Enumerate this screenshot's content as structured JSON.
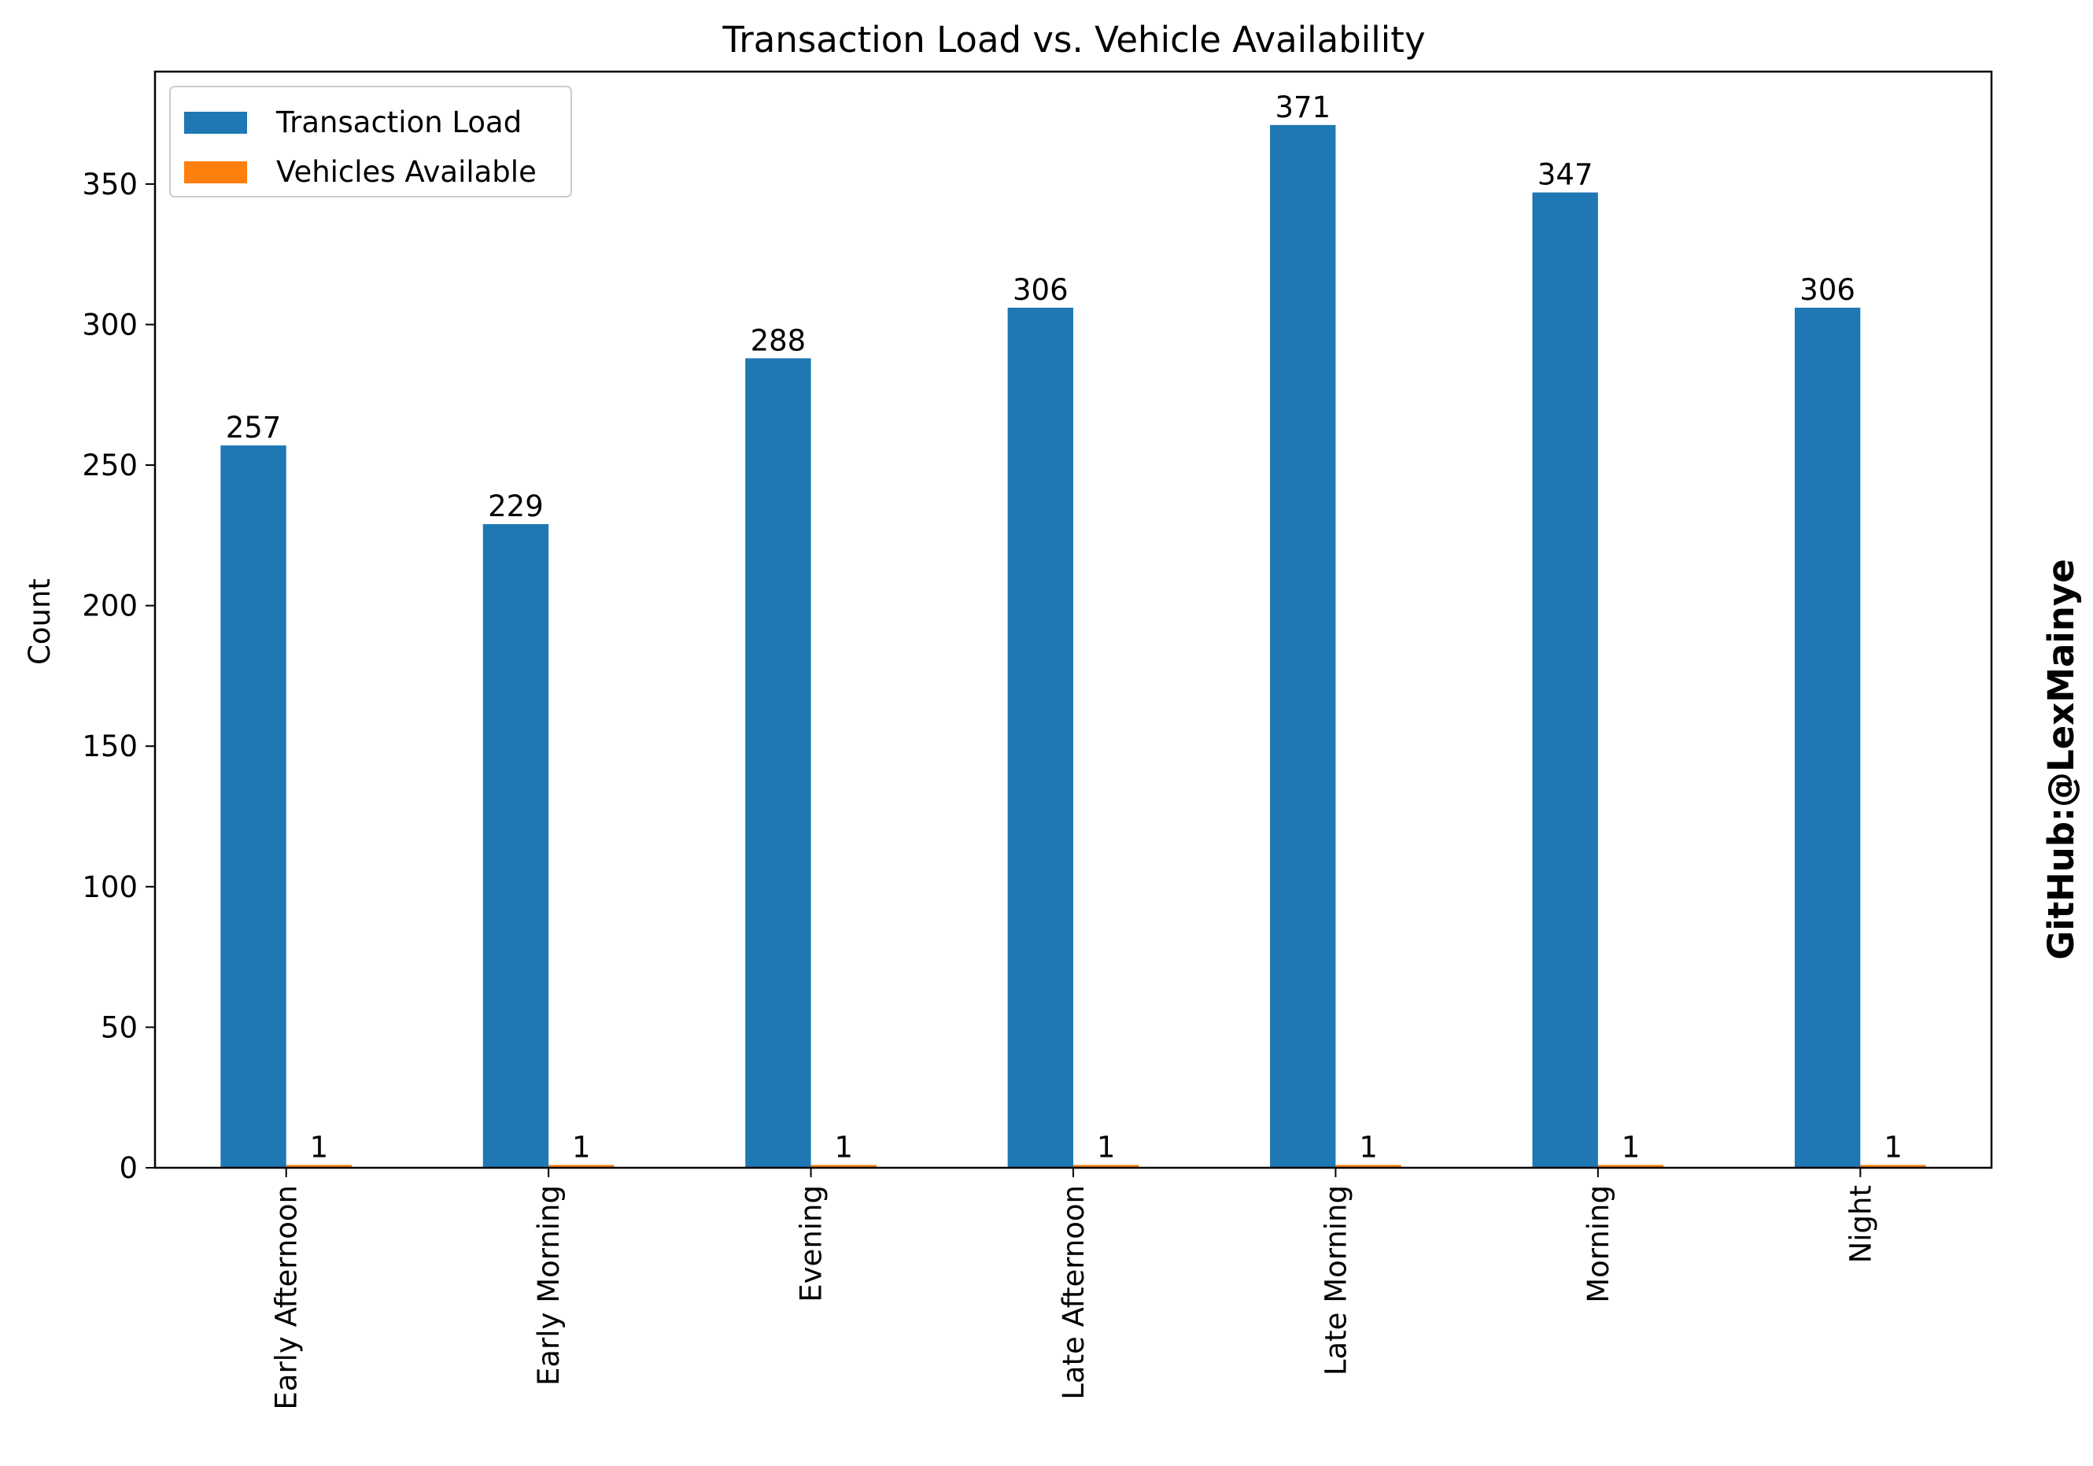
{
  "chart_data": {
    "type": "bar",
    "title": "Transaction Load vs. Vehicle Availability",
    "xlabel": "",
    "ylabel": "Count",
    "ylim": [
      0,
      390
    ],
    "yticks": [
      0,
      50,
      100,
      150,
      200,
      250,
      300,
      350
    ],
    "grid": false,
    "legend_position": "top-left",
    "categories": [
      "Early Afternoon",
      "Early Morning",
      "Evening",
      "Late Afternoon",
      "Late Morning",
      "Morning",
      "Night"
    ],
    "series": [
      {
        "name": "Transaction Load",
        "color": "#1f77b4",
        "values": [
          257,
          229,
          288,
          306,
          371,
          347,
          306
        ]
      },
      {
        "name": "Vehicles Available",
        "color": "#ff7f0e",
        "values": [
          1,
          1,
          1,
          1,
          1,
          1,
          1
        ]
      }
    ]
  },
  "watermark": {
    "text": "GitHub:@LexMainye",
    "color": "#ff0000"
  }
}
